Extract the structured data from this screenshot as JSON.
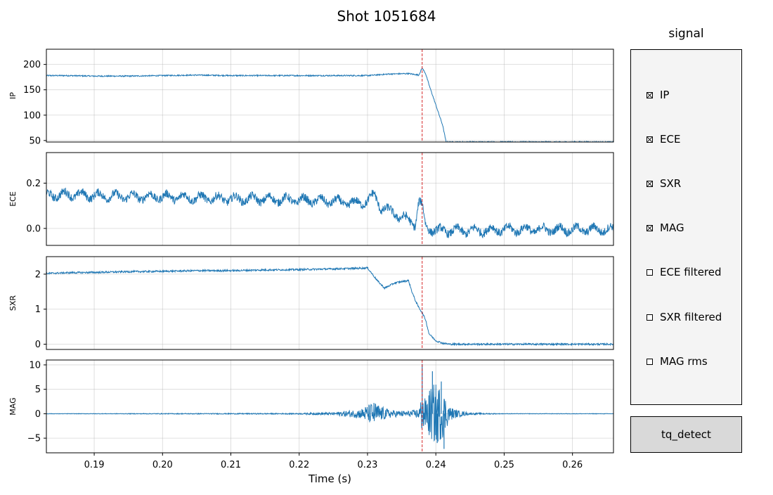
{
  "figure": {
    "title": "Shot 1051684"
  },
  "chart_data": {
    "type": "line",
    "xlabel": "Time (s)",
    "xlim": [
      0.183,
      0.266
    ],
    "xticks": [
      0.19,
      0.2,
      0.21,
      0.22,
      0.23,
      0.24,
      0.25,
      0.26
    ],
    "xtick_labels": [
      "0.19",
      "0.20",
      "0.21",
      "0.22",
      "0.23",
      "0.24",
      "0.25",
      "0.26"
    ],
    "grid": true,
    "vline": {
      "x": 0.238,
      "color": "#d62728",
      "style": "dashed"
    },
    "line_color": "#1f77b4",
    "subplots": [
      {
        "ylabel": "IP",
        "ylim": [
          47,
          230
        ],
        "yticks": [
          50,
          100,
          150,
          200
        ],
        "ytick_labels": [
          "50",
          "100",
          "150",
          "200"
        ],
        "x": [
          0.183,
          0.186,
          0.19,
          0.195,
          0.2,
          0.205,
          0.21,
          0.215,
          0.22,
          0.225,
          0.23,
          0.233,
          0.236,
          0.2375,
          0.238,
          0.2385,
          0.239,
          0.24,
          0.241,
          0.2415
        ],
        "y": [
          178,
          178,
          177,
          177,
          178,
          179,
          178,
          178,
          178,
          178,
          178,
          181,
          182,
          179,
          193,
          182,
          160,
          120,
          80,
          47
        ]
      },
      {
        "ylabel": "ECE",
        "ylim": [
          -0.075,
          0.335
        ],
        "yticks": [
          0.0,
          0.2
        ],
        "ytick_labels": [
          "0.0",
          "0.2"
        ],
        "x": [
          0.183,
          0.186,
          0.19,
          0.195,
          0.2,
          0.205,
          0.21,
          0.215,
          0.22,
          0.225,
          0.228,
          0.23,
          0.231,
          0.232,
          0.233,
          0.235,
          0.237,
          0.2375,
          0.238,
          0.2385,
          0.239,
          0.24,
          0.242,
          0.245,
          0.25,
          0.255,
          0.26,
          0.266
        ],
        "y": [
          0.145,
          0.15,
          0.145,
          0.14,
          0.14,
          0.135,
          0.13,
          0.13,
          0.125,
          0.12,
          0.11,
          0.12,
          0.15,
          0.09,
          0.08,
          0.05,
          0.02,
          0.12,
          0.1,
          0.01,
          0.0,
          -0.01,
          -0.01,
          -0.01,
          -0.005,
          -0.005,
          -0.005,
          -0.005
        ],
        "amp": 0.018
      },
      {
        "ylabel": "SXR",
        "ylim": [
          -0.15,
          2.5
        ],
        "yticks": [
          0,
          1,
          2
        ],
        "ytick_labels": [
          "0",
          "1",
          "2"
        ],
        "x": [
          0.183,
          0.186,
          0.19,
          0.195,
          0.2,
          0.205,
          0.21,
          0.215,
          0.22,
          0.225,
          0.229,
          0.23,
          0.2315,
          0.2325,
          0.234,
          0.236,
          0.2365,
          0.237,
          0.2375,
          0.238,
          0.2385,
          0.239,
          0.24,
          0.241,
          0.242,
          0.245,
          0.25,
          0.26,
          0.266
        ],
        "y": [
          2.02,
          2.04,
          2.05,
          2.07,
          2.08,
          2.1,
          2.1,
          2.12,
          2.13,
          2.15,
          2.17,
          2.18,
          1.8,
          1.6,
          1.75,
          1.82,
          1.5,
          1.25,
          1.05,
          0.9,
          0.7,
          0.3,
          0.1,
          0.03,
          0.0,
          0.0,
          0.0,
          0.0,
          0.0
        ],
        "amp": 0.025
      },
      {
        "ylabel": "MAG",
        "ylim": [
          -8,
          11
        ],
        "yticks": [
          -5,
          0,
          5,
          10
        ],
        "ytick_labels": [
          "−5",
          "0",
          "5",
          "10"
        ],
        "x": [
          0.183,
          0.19,
          0.2,
          0.21,
          0.22,
          0.225,
          0.228,
          0.229,
          0.23,
          0.231,
          0.232,
          0.233,
          0.234,
          0.236,
          0.237,
          0.2375,
          0.238,
          0.2385,
          0.239,
          0.24,
          0.241,
          0.242,
          0.243,
          0.245,
          0.25,
          0.266
        ],
        "y": [
          0,
          0,
          0,
          0,
          0,
          0,
          0,
          0,
          0,
          0,
          0,
          0,
          0,
          0,
          0,
          0,
          0,
          0,
          0,
          0,
          0,
          0,
          0,
          0,
          0,
          0
        ],
        "env": [
          0.05,
          0.05,
          0.08,
          0.1,
          0.12,
          0.3,
          0.8,
          1.0,
          1.8,
          2.5,
          1.5,
          1.0,
          0.7,
          0.6,
          0.8,
          1.2,
          4.0,
          3.0,
          5.0,
          6.5,
          5.0,
          1.5,
          0.8,
          0.2,
          0.05,
          0.05
        ],
        "spikes": [
          {
            "x": 0.238,
            "y": 10.2
          },
          {
            "x": 0.2382,
            "y": -2.5
          },
          {
            "x": 0.2395,
            "y": 8.7
          },
          {
            "x": 0.2402,
            "y": -6.0
          },
          {
            "x": 0.2408,
            "y": 6.6
          },
          {
            "x": 0.2412,
            "y": -7.2
          }
        ]
      }
    ]
  },
  "legend_panel": {
    "title": "signal",
    "items": [
      {
        "label": "IP",
        "checked": true
      },
      {
        "label": "ECE",
        "checked": true
      },
      {
        "label": "SXR",
        "checked": true
      },
      {
        "label": "MAG",
        "checked": true
      },
      {
        "label": "ECE filtered",
        "checked": false
      },
      {
        "label": "SXR filtered",
        "checked": false
      },
      {
        "label": "MAG rms",
        "checked": false
      }
    ]
  },
  "detect_button": {
    "label": "tq_detect"
  }
}
